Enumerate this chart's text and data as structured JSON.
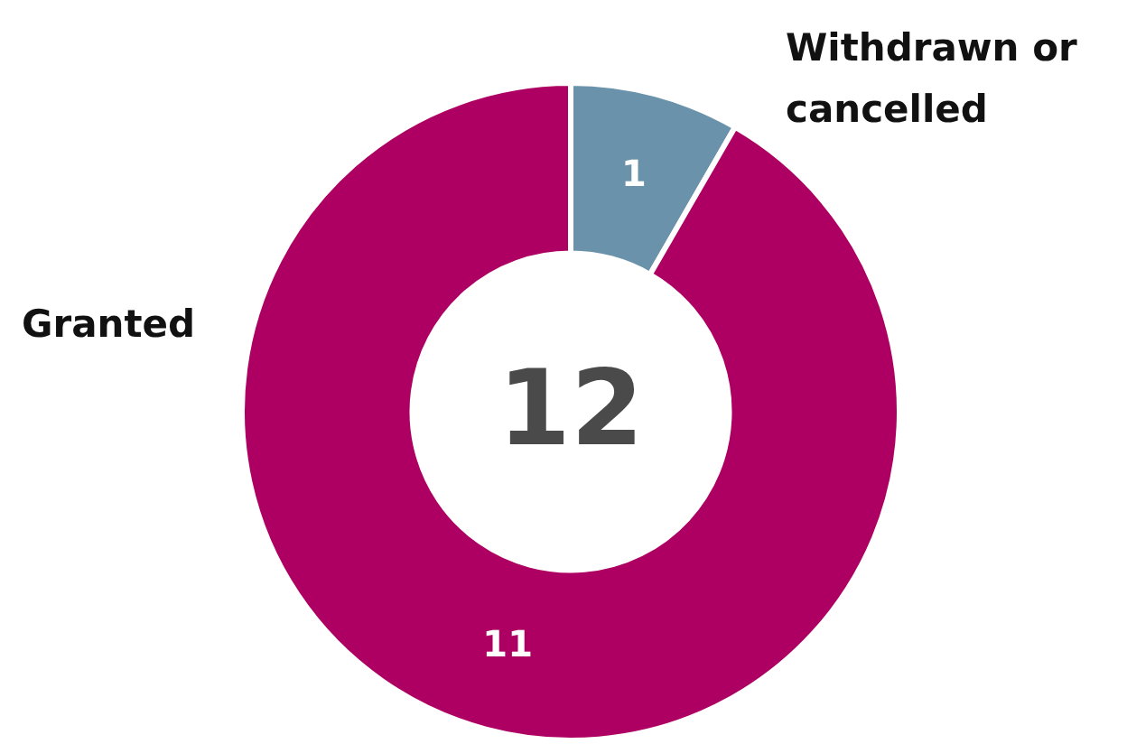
{
  "chart_data": {
    "type": "donut",
    "categories": [
      "Withdrawn or cancelled",
      "Granted"
    ],
    "values": [
      1,
      11
    ],
    "colors": [
      "#6a93ab",
      "#ae0062"
    ],
    "data_labels": true,
    "annotations": [
      "12"
    ]
  }
}
